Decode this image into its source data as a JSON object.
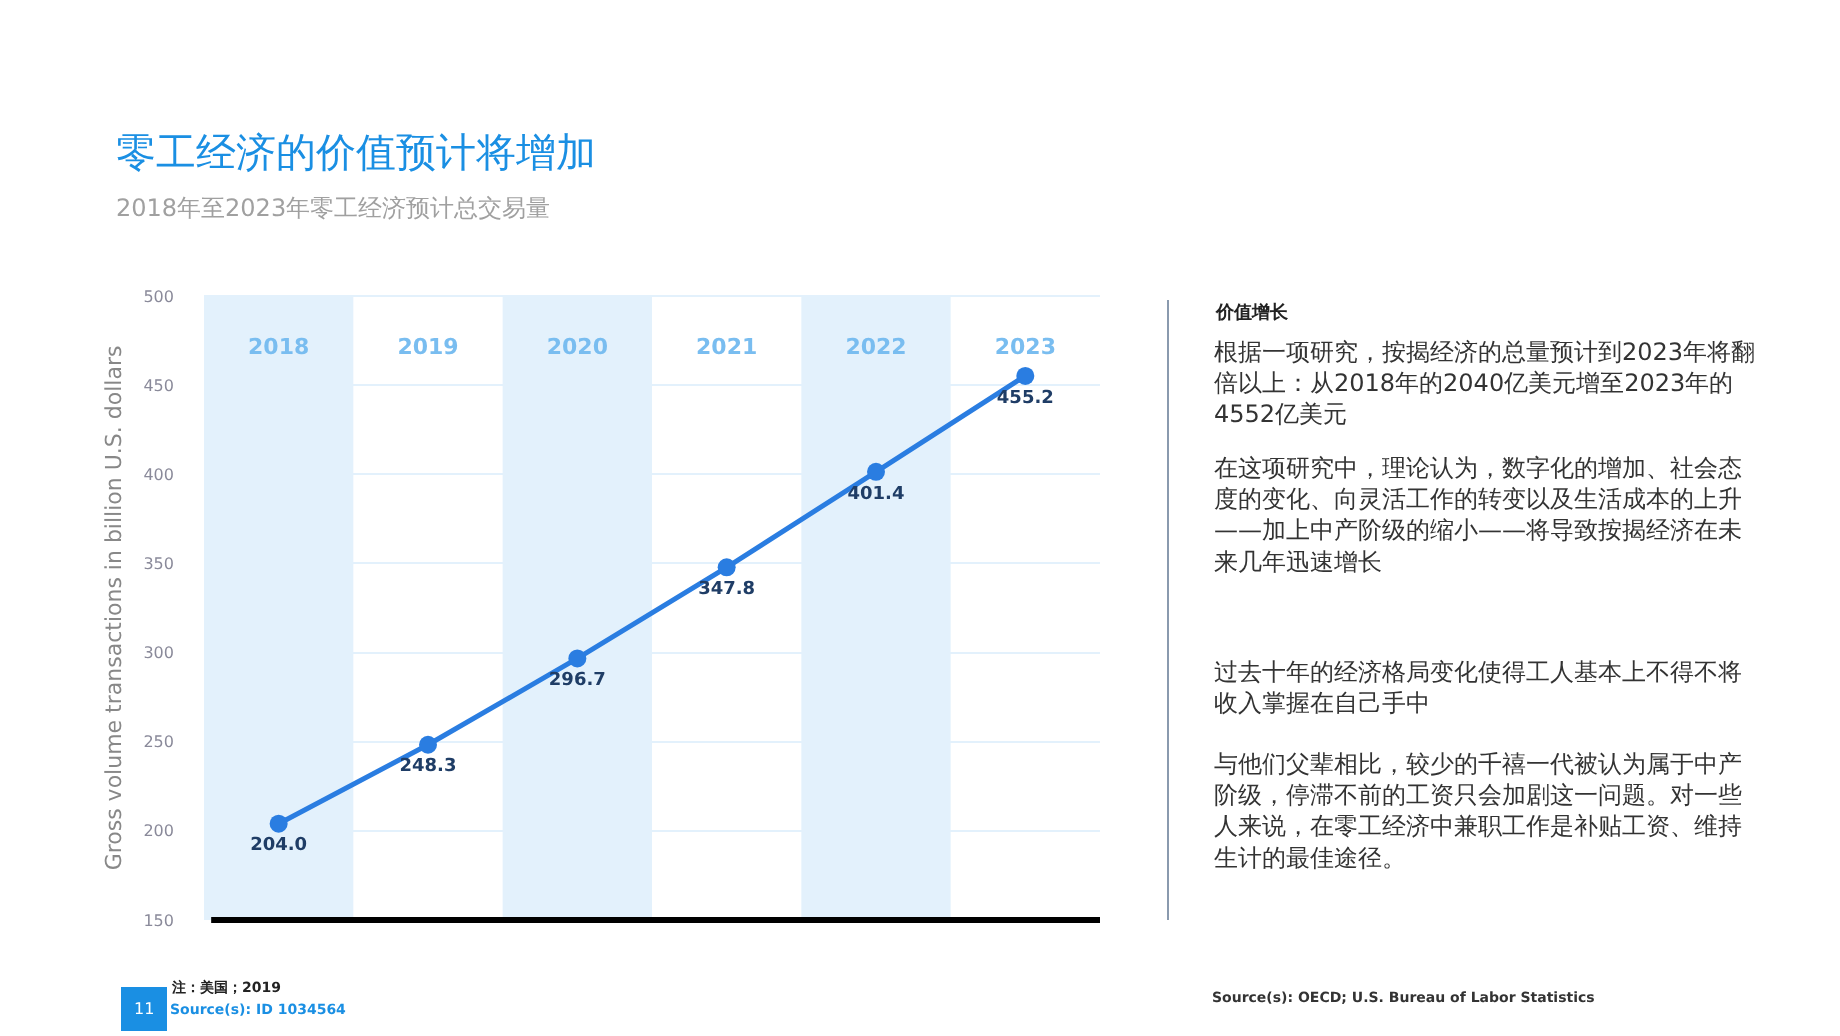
{
  "chart_data": {
    "type": "line",
    "title": "零工经济的价值预计将增加",
    "subtitle": "2018年至2023年零工经济预计总交易量",
    "ylabel": "Gross volume transactions in billion U.S. dollars",
    "categories": [
      "2018",
      "2019",
      "2020",
      "2021",
      "2022",
      "2023"
    ],
    "series": [
      {
        "color": "#2a7de1",
        "values": [
          204.0,
          248.3,
          296.7,
          347.8,
          401.4,
          455.2
        ]
      }
    ],
    "ylim": [
      150,
      500
    ],
    "yticks": [
      150,
      200,
      250,
      300,
      350,
      400,
      450,
      500
    ],
    "value_labels": [
      "204.0",
      "248.3",
      "296.7",
      "347.8",
      "401.4",
      "455.2"
    ],
    "grid": "y",
    "marker": "circle",
    "line_style": "solid",
    "bands": [
      {
        "axis": "x",
        "from": "2018",
        "to": "2018",
        "color": "#e3f1fc"
      },
      {
        "axis": "x",
        "from": "2020",
        "to": "2020",
        "color": "#e3f1fc"
      },
      {
        "axis": "x",
        "from": "2022",
        "to": "2022",
        "color": "#e3f1fc"
      }
    ],
    "annotations": [
      "价值增长",
      "根据一项研究，按揭经济的总量预计到2023年将翻倍以上：从2018年的2040亿美元增至2023年的4552亿美元",
      "在这项研究中，理论认为，数字化的增加、社会态度的变化、向灵活工作的转变以及生活成本的上升——加上中产阶级的缩小——将导致按揭经济在未来几年迅速增长",
      "过去十年的经济格局变化使得工人基本上不得不将收入掌握在自己手中",
      "与他们父辈相比，较少的千禧一代被认为属于中产阶级，停滞不前的工资只会加剧这一问题。对一些人来说，在零工经济中兼职工作是补贴工资、维持生计的最佳途径。",
      "注：美国；2019",
      "Source(s): ID 1034564",
      "Source(s): OECD; U.S. Bureau of Labor Statistics",
      "11"
    ]
  }
}
